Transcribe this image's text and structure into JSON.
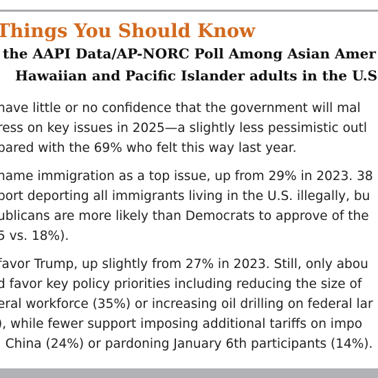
{
  "heading": "e Things You Should Know",
  "subheading": {
    "line1": "the AAPI Data/AP-NORC Poll Among Asian Amer",
    "line2": "Hawaiian and Pacific Islander adults in the U.S.:"
  },
  "findings": [
    {
      "lines": [
        "have little or no confidence that the government will mal",
        "ress on key issues in 2025—a slightly less pessimistic outl",
        "pared with the 69% who felt this way last year."
      ]
    },
    {
      "lines": [
        "name immigration as a top issue, up from 29% in 2023. 38",
        "port deporting all immigrants living in the U.S. illegally, bu",
        "ublicans are more likely than Democrats to approve of the",
        "5 vs. 18%)."
      ]
    },
    {
      "lines": [
        "favor Trump, up slightly from 27% in 2023. Still, only abou",
        "d favor key policy priorities including reducing the size of",
        "eral workforce (35%) or increasing oil drilling on federal lar",
        "), while fewer support imposing additional tariffs on impo",
        ". China (24%) or pardoning January 6th participants (14%)."
      ]
    }
  ],
  "colors": {
    "heading": "#d2691e",
    "text": "#222222",
    "rule": "#b0b2b5"
  }
}
